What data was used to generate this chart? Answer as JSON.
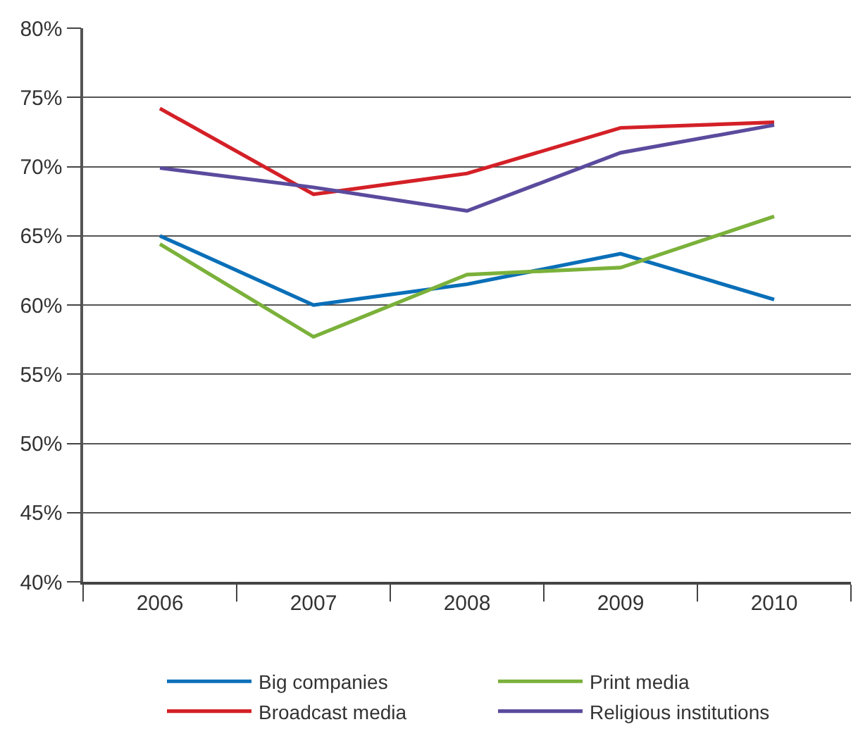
{
  "chart_data": {
    "type": "line",
    "categories": [
      "2006",
      "2007",
      "2008",
      "2009",
      "2010"
    ],
    "series": [
      {
        "name": "Big companies",
        "color": "#0a6fb8",
        "values": [
          65.0,
          60.0,
          61.5,
          63.7,
          60.4
        ]
      },
      {
        "name": "Print media",
        "color": "#7bb13a",
        "values": [
          64.4,
          57.7,
          62.2,
          62.7,
          66.4
        ]
      },
      {
        "name": "Broadcast media",
        "color": "#d42027",
        "values": [
          74.2,
          68.0,
          69.5,
          72.8,
          73.2
        ]
      },
      {
        "name": "Religious institutions",
        "color": "#5b4b9d",
        "values": [
          69.9,
          68.5,
          66.8,
          71.0,
          73.0
        ]
      }
    ],
    "ylim": [
      40,
      80
    ],
    "yticks": [
      {
        "value": 40,
        "label": "40%"
      },
      {
        "value": 45,
        "label": "45%"
      },
      {
        "value": 50,
        "label": "50%"
      },
      {
        "value": 55,
        "label": "55%"
      },
      {
        "value": 60,
        "label": "60%"
      },
      {
        "value": 65,
        "label": "65%"
      },
      {
        "value": 70,
        "label": "70%"
      },
      {
        "value": 75,
        "label": "75%"
      },
      {
        "value": 80,
        "label": "80%"
      }
    ],
    "grid": "y",
    "legend": "bottom",
    "marker": "none",
    "line_style": "solid"
  }
}
